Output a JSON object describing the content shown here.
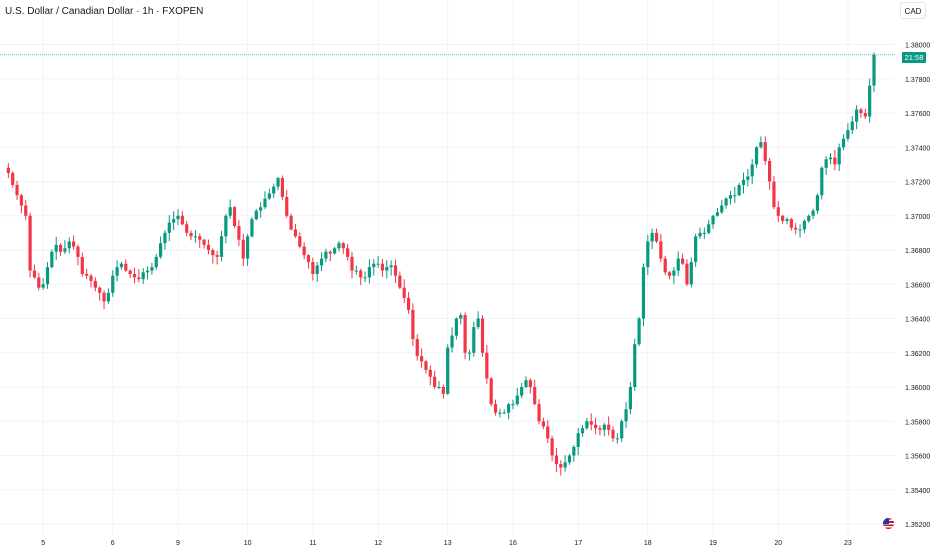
{
  "title": "U.S. Dollar / Canadian Dollar · 1h · FXOPEN",
  "currency_button": "CAD",
  "last_price_countdown": "21:58",
  "colors": {
    "up": "#089981",
    "down": "#f23645",
    "grid": "#f0f3fa",
    "axis_text": "#131722",
    "last_line": "#089981"
  },
  "icons": {
    "flag": "us-flag-icon"
  },
  "chart_data": {
    "type": "candlestick",
    "symbol": "U.S. Dollar / Canadian Dollar",
    "interval": "1h",
    "source": "FXOPEN",
    "ylim": [
      1.3513,
      1.3826
    ],
    "y_ticks": [
      "1.38000",
      "1.37800",
      "1.37600",
      "1.37400",
      "1.37200",
      "1.37000",
      "1.36800",
      "1.36600",
      "1.36400",
      "1.36200",
      "1.36000",
      "1.35800",
      "1.35600",
      "1.35400",
      "1.35200"
    ],
    "x_ticks": [
      {
        "label": "5",
        "bar": 9
      },
      {
        "label": "6",
        "bar": 25
      },
      {
        "label": "9",
        "bar": 40
      },
      {
        "label": "10",
        "bar": 56
      },
      {
        "label": "11",
        "bar": 71
      },
      {
        "label": "12",
        "bar": 86
      },
      {
        "label": "13",
        "bar": 102
      },
      {
        "label": "16",
        "bar": 117
      },
      {
        "label": "17",
        "bar": 132
      },
      {
        "label": "18",
        "bar": 148
      },
      {
        "label": "19",
        "bar": 163
      },
      {
        "label": "20",
        "bar": 178
      },
      {
        "label": "23",
        "bar": 194
      }
    ],
    "close_path": [
      1.3728,
      1.3725,
      1.3718,
      1.3712,
      1.3706,
      1.37,
      1.3668,
      1.3664,
      1.3658,
      1.366,
      1.367,
      1.3679,
      1.3683,
      1.3679,
      1.3681,
      1.3685,
      1.3682,
      1.3676,
      1.3666,
      1.3665,
      1.3662,
      1.3658,
      1.3655,
      1.365,
      1.3655,
      1.3665,
      1.367,
      1.3672,
      1.3668,
      1.3666,
      1.3664,
      1.3663,
      1.3667,
      1.3668,
      1.367,
      1.3676,
      1.3684,
      1.369,
      1.3696,
      1.3698,
      1.37,
      1.3695,
      1.369,
      1.3688,
      1.3688,
      1.3686,
      1.3683,
      1.368,
      1.3677,
      1.3676,
      1.3688,
      1.37,
      1.3705,
      1.3694,
      1.3686,
      1.3675,
      1.3688,
      1.3698,
      1.3703,
      1.3705,
      1.371,
      1.3713,
      1.3717,
      1.3722,
      1.3711,
      1.37,
      1.3692,
      1.3688,
      1.3682,
      1.3677,
      1.3673,
      1.3666,
      1.3671,
      1.3675,
      1.3679,
      1.3678,
      1.3681,
      1.3684,
      1.3681,
      1.3676,
      1.3668,
      1.3668,
      1.3664,
      1.3664,
      1.367,
      1.3672,
      1.3672,
      1.3668,
      1.367,
      1.3671,
      1.3665,
      1.3658,
      1.3652,
      1.3645,
      1.3628,
      1.3618,
      1.3615,
      1.361,
      1.3606,
      1.36,
      1.36,
      1.3596,
      1.3623,
      1.363,
      1.364,
      1.3642,
      1.362,
      1.362,
      1.3635,
      1.364,
      1.362,
      1.3605,
      1.359,
      1.3585,
      1.3585,
      1.3585,
      1.359,
      1.359,
      1.3595,
      1.36,
      1.3604,
      1.36,
      1.359,
      1.358,
      1.3577,
      1.357,
      1.356,
      1.3555,
      1.3553,
      1.3556,
      1.356,
      1.3565,
      1.3573,
      1.3576,
      1.358,
      1.3578,
      1.3576,
      1.3575,
      1.3578,
      1.3575,
      1.357,
      1.357,
      1.358,
      1.3587,
      1.36,
      1.3625,
      1.364,
      1.367,
      1.3685,
      1.369,
      1.3685,
      1.3675,
      1.3667,
      1.3665,
      1.3668,
      1.3675,
      1.3672,
      1.366,
      1.3673,
      1.3688,
      1.369,
      1.369,
      1.3695,
      1.37,
      1.3702,
      1.3706,
      1.371,
      1.3712,
      1.3712,
      1.3718,
      1.3721,
      1.3723,
      1.373,
      1.374,
      1.3743,
      1.3732,
      1.372,
      1.3705,
      1.37,
      1.3697,
      1.3698,
      1.3693,
      1.3692,
      1.3692,
      1.3697,
      1.37,
      1.3703,
      1.3712,
      1.3728,
      1.3733,
      1.3734,
      1.373,
      1.374,
      1.3745,
      1.375,
      1.3755,
      1.3762,
      1.376,
      1.3758,
      1.3776,
      1.3794
    ],
    "last_price": 1.3794,
    "grid": true,
    "legend": "none"
  }
}
